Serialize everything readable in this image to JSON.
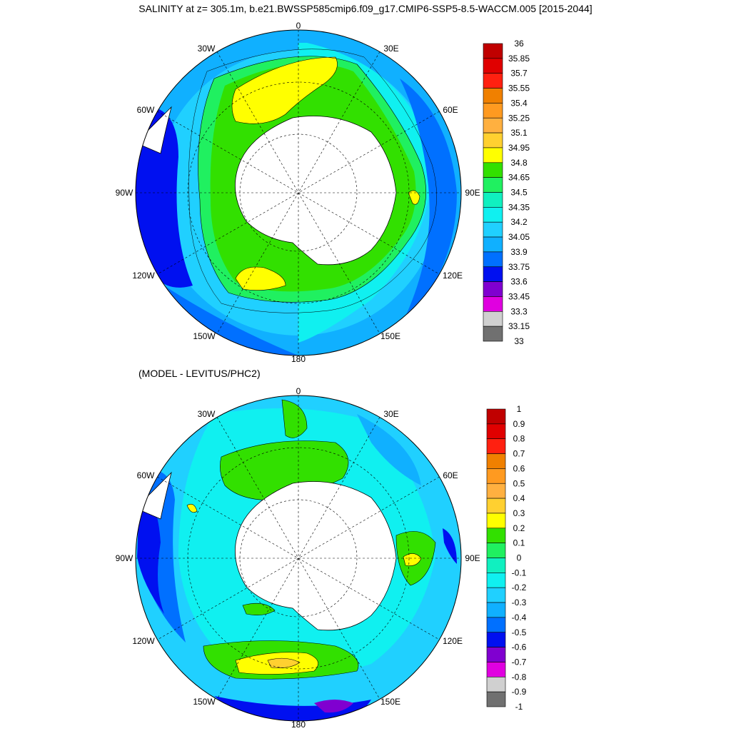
{
  "title": "SALINITY at z= 305.1m, b.e21.BWSSP585cmip6.f09_g17.CMIP6-SSP5-8.5-WACCM.005 [2015-2044]",
  "subtitle": "(MODEL - LEVITUS/PHC2)",
  "longitude_labels": {
    "lon_0": "0",
    "lon_30e": "30E",
    "lon_60e": "60E",
    "lon_90e": "90E",
    "lon_120e": "120E",
    "lon_150e": "150E",
    "lon_180": "180",
    "lon_150w": "150W",
    "lon_120w": "120W",
    "lon_90w": "90W",
    "lon_60w": "60W",
    "lon_30w": "30W"
  },
  "colorbar_top": {
    "labels": [
      "36",
      "35.85",
      "35.7",
      "35.55",
      "35.4",
      "35.25",
      "35.1",
      "34.95",
      "34.8",
      "34.65",
      "34.5",
      "34.35",
      "34.2",
      "34.05",
      "33.9",
      "33.75",
      "33.6",
      "33.45",
      "33.3",
      "33.15",
      "33"
    ],
    "colors": [
      "#c00000",
      "#e00000",
      "#ff2010",
      "#f08000",
      "#ff9a20",
      "#ffb040",
      "#ffd030",
      "#ffff00",
      "#32e000",
      "#20f060",
      "#10f0c0",
      "#10f0f0",
      "#20d0ff",
      "#10b0ff",
      "#0070ff",
      "#0010f0",
      "#8000d0",
      "#e000e0",
      "#d0d0d0",
      "#707070"
    ]
  },
  "colorbar_bottom": {
    "labels": [
      "1",
      "0.9",
      "0.8",
      "0.7",
      "0.6",
      "0.5",
      "0.4",
      "0.3",
      "0.2",
      "0.1",
      "0",
      "-0.1",
      "-0.2",
      "-0.3",
      "-0.4",
      "-0.5",
      "-0.6",
      "-0.7",
      "-0.8",
      "-0.9",
      "-1"
    ],
    "colors": [
      "#c00000",
      "#e00000",
      "#ff2010",
      "#f08000",
      "#ff9a20",
      "#ffb040",
      "#ffd030",
      "#ffff00",
      "#32e000",
      "#20f060",
      "#10f0c0",
      "#10f0f0",
      "#20d0ff",
      "#10b0ff",
      "#0070ff",
      "#0010f0",
      "#8000d0",
      "#e000e0",
      "#d0d0d0",
      "#707070"
    ]
  }
}
